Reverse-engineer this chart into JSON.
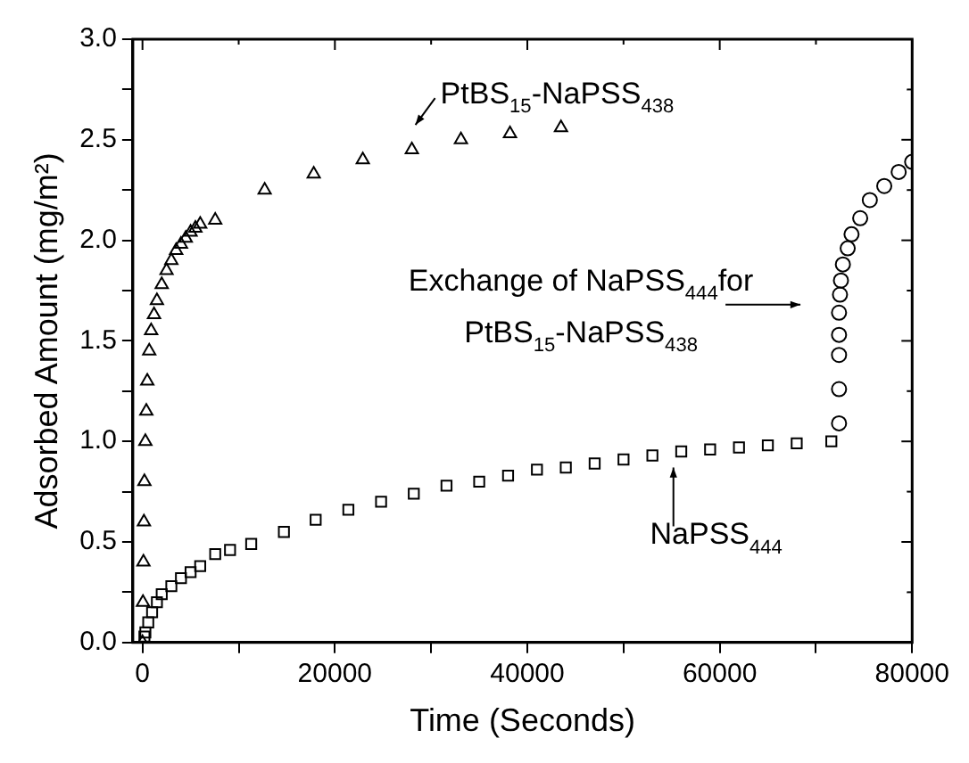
{
  "chart_data": {
    "type": "scatter",
    "xlabel": "Time (Seconds)",
    "ylabel": "Adsorbed Amount (mg/m²)",
    "xlim": [
      -1000,
      80000
    ],
    "ylim": [
      0,
      3
    ],
    "xticks": [
      0,
      {
        "value": 10000,
        "label": null
      },
      20000,
      {
        "value": 30000,
        "label": null
      },
      40000,
      {
        "value": 50000,
        "label": null
      },
      60000,
      {
        "value": 70000,
        "label": null
      },
      80000
    ],
    "yticks": [
      {
        "value": 0,
        "label": "0.0"
      },
      {
        "value": 0.25,
        "label": null
      },
      {
        "value": 0.5,
        "label": "0.5"
      },
      {
        "value": 0.75,
        "label": null
      },
      {
        "value": 1,
        "label": "1.0"
      },
      {
        "value": 1.25,
        "label": null
      },
      {
        "value": 1.5,
        "label": "1.5"
      },
      {
        "value": 1.75,
        "label": null
      },
      {
        "value": 2,
        "label": "2.0"
      },
      {
        "value": 2.25,
        "label": null
      },
      {
        "value": 2.5,
        "label": "2.5"
      },
      {
        "value": 2.75,
        "label": null
      },
      {
        "value": 3,
        "label": "3.0"
      }
    ],
    "grid": false,
    "legend": false,
    "series": [
      {
        "color": "#000000",
        "marker": "triangle",
        "x": [
          0,
          50,
          100,
          150,
          200,
          300,
          400,
          500,
          700,
          900,
          1200,
          1500,
          2000,
          2500,
          3000,
          3500,
          4000,
          4500,
          5000,
          5500,
          6000,
          7560,
          12700,
          17800,
          22900,
          28000,
          33100,
          38200,
          43500
        ],
        "values": [
          0.0,
          0.2,
          0.4,
          0.6,
          0.8,
          1.0,
          1.15,
          1.3,
          1.45,
          1.55,
          1.63,
          1.7,
          1.78,
          1.85,
          1.9,
          1.95,
          1.98,
          2.01,
          2.04,
          2.06,
          2.08,
          2.1,
          2.25,
          2.33,
          2.4,
          2.45,
          2.5,
          2.53,
          2.56
        ]
      },
      {
        "color": "#000000",
        "marker": "square",
        "x": [
          200,
          300,
          600,
          1000,
          1500,
          2000,
          3000,
          4000,
          5000,
          6000,
          7560,
          9100,
          11300,
          14700,
          18000,
          21400,
          24800,
          28200,
          31600,
          35000,
          38000,
          41000,
          44000,
          47000,
          50000,
          53000,
          56000,
          59000,
          62000,
          65000,
          68000,
          71600
        ],
        "values": [
          0.03,
          0.05,
          0.1,
          0.15,
          0.2,
          0.24,
          0.28,
          0.32,
          0.35,
          0.38,
          0.44,
          0.46,
          0.49,
          0.55,
          0.61,
          0.66,
          0.7,
          0.74,
          0.78,
          0.8,
          0.83,
          0.86,
          0.87,
          0.89,
          0.91,
          0.93,
          0.95,
          0.96,
          0.97,
          0.98,
          0.99,
          1.0
        ]
      },
      {
        "color": "#000000",
        "marker": "circle",
        "x": [
          72400,
          72400,
          72400,
          72400,
          72400,
          72500,
          72600,
          72800,
          73300,
          73700,
          74600,
          75600,
          77100,
          78600,
          80000
        ],
        "values": [
          1.09,
          1.26,
          1.43,
          1.53,
          1.64,
          1.73,
          1.8,
          1.88,
          1.96,
          2.03,
          2.11,
          2.2,
          2.27,
          2.34,
          2.39
        ]
      }
    ],
    "annotations": [
      {
        "text": "PtBS$_{15}$-NaPSS$_{438}$",
        "x": 28000,
        "y": 2.45
      },
      "Exchange of NaPSS$_{444}$for PtBS$_{15}$-NaPSS$_{438}$",
      {
        "text": "NaPSS$_{444}$",
        "x": 55000,
        "y": 0.95
      }
    ]
  }
}
